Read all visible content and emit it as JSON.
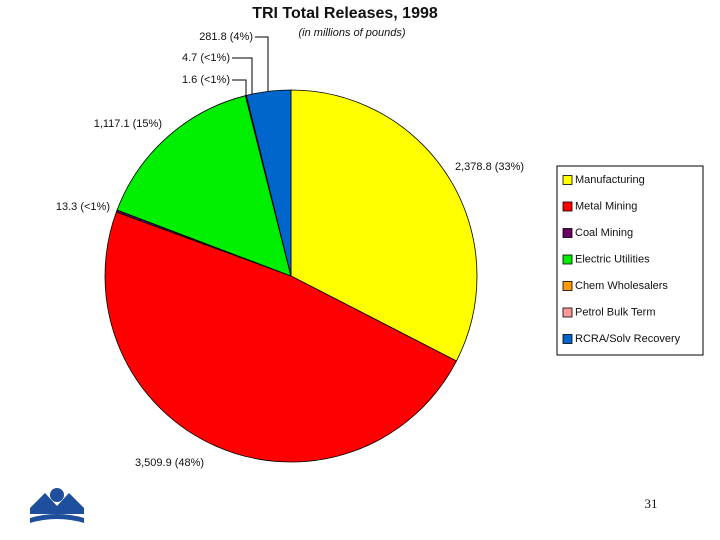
{
  "chart_data": {
    "type": "pie",
    "title": "TRI Total Releases, 1998",
    "subtitle": "(in millions of pounds)",
    "categories": [
      "Manufacturing",
      "Metal Mining",
      "Coal Mining",
      "Electric Utilities",
      "Chem Wholesalers",
      "Petrol Bulk Term",
      "RCRA/Solv Recovery"
    ],
    "values": [
      2378.8,
      3509.9,
      13.3,
      1117.1,
      1.6,
      4.7,
      281.8
    ],
    "value_labels": [
      "2,378.8 (33%)",
      "3,509.9 (48%)",
      "13.3 (<1%)",
      "1,117.1 (15%)",
      "1.6 (<1%)",
      "4.7 (<1%)",
      "281.8 (4%)"
    ],
    "colors": [
      "#ffff00",
      "#ff0000",
      "#660066",
      "#00ee00",
      "#ff9900",
      "#ff9999",
      "#0066cc"
    ],
    "legend": "right"
  },
  "slide_number": "31"
}
